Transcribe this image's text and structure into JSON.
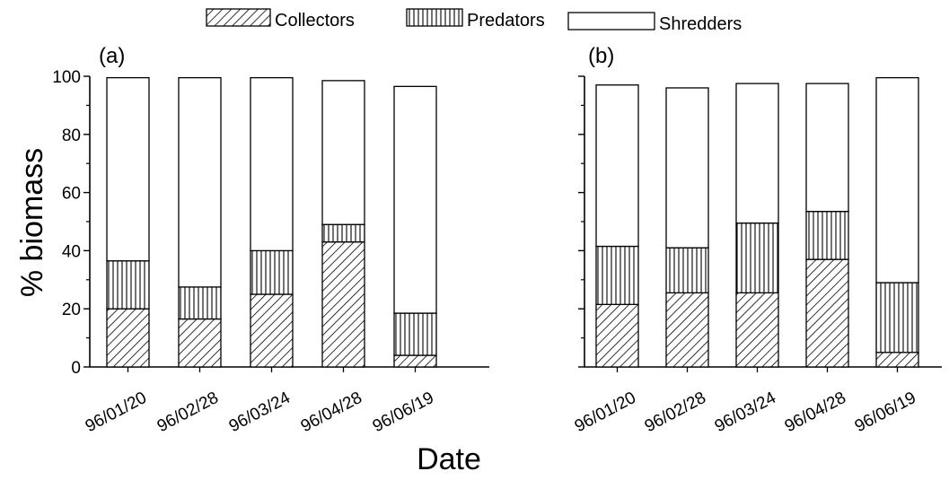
{
  "chart_data": {
    "type": "bar",
    "stacked": true,
    "xlabel": "Date",
    "ylabel": "% biomass",
    "ylim": [
      0,
      100
    ],
    "yticks": [
      0,
      20,
      40,
      60,
      80,
      100
    ],
    "legend": {
      "placement": "top-center",
      "entries": [
        {
          "name": "Collectors",
          "pattern": "diagonal-hatch"
        },
        {
          "name": "Predators",
          "pattern": "vertical-hatch"
        },
        {
          "name": "Shredders",
          "pattern": "none"
        }
      ]
    },
    "panels": [
      {
        "label": "(a)",
        "categories": [
          "96/01/20",
          "96/02/28",
          "96/03/24",
          "96/04/28",
          "96/06/19"
        ],
        "series": [
          {
            "name": "Collectors",
            "values": [
              20,
              16.5,
              25,
              43,
              4
            ]
          },
          {
            "name": "Predators",
            "values": [
              16.5,
              11,
              15,
              6,
              14.5
            ]
          },
          {
            "name": "Shredders",
            "values": [
              63,
              72,
              59.5,
              49.5,
              78
            ]
          }
        ]
      },
      {
        "label": "(b)",
        "categories": [
          "96/01/20",
          "96/02/28",
          "96/03/24",
          "96/04/28",
          "96/06/19"
        ],
        "series": [
          {
            "name": "Collectors",
            "values": [
              21.5,
              25.5,
              25.5,
              37,
              5
            ]
          },
          {
            "name": "Predators",
            "values": [
              20,
              15.5,
              24,
              16.5,
              24
            ]
          },
          {
            "name": "Shredders",
            "values": [
              55.5,
              55,
              48,
              44,
              70.5
            ]
          }
        ]
      }
    ]
  }
}
